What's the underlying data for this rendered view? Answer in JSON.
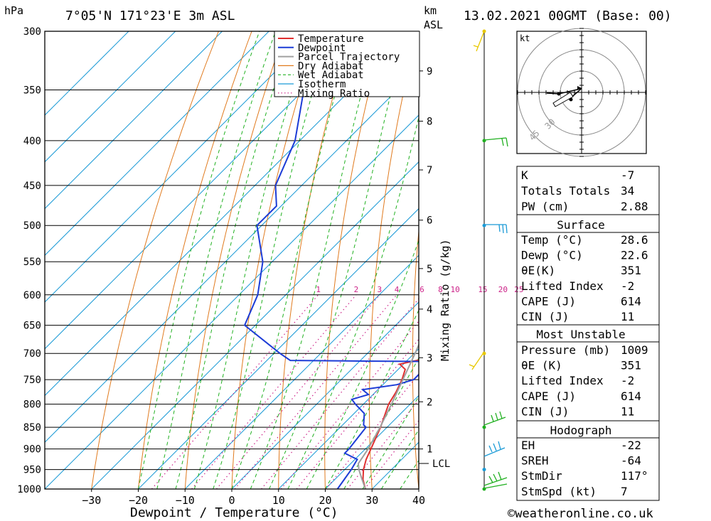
{
  "header": {
    "location": "7°05'N  171°23'E  3m  ASL",
    "datetime": "13.02.2021  00GMT  (Base: 00)",
    "hpa_label": "hPa",
    "km_label": "km",
    "asl_label": "ASL"
  },
  "chart_data": {
    "type": "line",
    "title": "7°05'N  171°23'E  3m  ASL",
    "xlabel": "Dewpoint / Temperature (°C)",
    "ylabel": "hPa",
    "right_axis_label": "km ASL",
    "mixing_ratio_axis_label": "Mixing Ratio (g/kg)",
    "x_ticks": [
      -30,
      -20,
      -10,
      0,
      10,
      20,
      30,
      40
    ],
    "x_tick_labels": [
      "−30",
      "−20",
      "−10",
      "0",
      "10",
      "20",
      "30",
      "40"
    ],
    "y_ticks": [
      300,
      350,
      400,
      450,
      500,
      550,
      600,
      650,
      700,
      750,
      800,
      850,
      900,
      950,
      1000
    ],
    "y_tick_labels": [
      "300",
      "350",
      "400",
      "450",
      "500",
      "550",
      "600",
      "650",
      "700",
      "750",
      "800",
      "850",
      "900",
      "950",
      "1000"
    ],
    "ylim": [
      300,
      1000
    ],
    "xlim_at_1000hPa": [
      -40,
      40
    ],
    "skew_degC_per_unit": 45,
    "km_ticks": [
      1,
      2,
      3,
      4,
      5,
      6,
      7,
      8,
      9
    ],
    "km_tick_labels": [
      "1",
      "2",
      "3",
      "4",
      "5",
      "6",
      "7",
      "8",
      "9"
    ],
    "km_pressures": [
      900,
      795,
      708,
      623,
      560,
      493,
      432,
      380,
      333
    ],
    "lcl_label": "LCL",
    "lcl_pressure": 935,
    "mixing_ratio_labels": [
      "1",
      "2",
      "3",
      "4",
      "6",
      "8",
      "10",
      "15",
      "20",
      "25"
    ],
    "mixing_ratio_values": [
      1,
      2,
      3,
      4,
      6,
      8,
      10,
      15,
      20,
      25
    ],
    "legend": [
      {
        "name": "Temperature",
        "color": "#e03030",
        "style": "solid"
      },
      {
        "name": "Dewpoint",
        "color": "#1c3cd6",
        "style": "solid"
      },
      {
        "name": "Parcel Trajectory",
        "color": "#a0a0a0",
        "style": "solid"
      },
      {
        "name": "Dry Adiabat",
        "color": "#e07a1e",
        "style": "solid"
      },
      {
        "name": "Wet Adiabat",
        "color": "#20b020",
        "style": "dashed"
      },
      {
        "name": "Isotherm",
        "color": "#1a9ad6",
        "style": "solid"
      },
      {
        "name": "Mixing Ratio",
        "color": "#cc2288",
        "style": "dotted"
      }
    ],
    "series": [
      {
        "name": "Temperature",
        "color": "#e03030",
        "points": [
          [
            1000,
            28.6
          ],
          [
            975,
            26
          ],
          [
            950,
            24
          ],
          [
            925,
            22.4
          ],
          [
            900,
            21.2
          ],
          [
            850,
            18.6
          ],
          [
            800,
            15.4
          ],
          [
            775,
            14.4
          ],
          [
            750,
            13
          ],
          [
            730,
            11.5
          ],
          [
            720,
            9.2
          ],
          [
            712,
            12.5
          ],
          [
            700,
            11.2
          ],
          [
            650,
            5
          ],
          [
            600,
            -1.5
          ],
          [
            550,
            -4.5
          ],
          [
            500,
            -11
          ],
          [
            475,
            -14.5
          ],
          [
            450,
            -18
          ],
          [
            400,
            -25
          ],
          [
            370,
            -30
          ]
        ]
      },
      {
        "name": "Dewpoint",
        "color": "#1c3cd6",
        "points": [
          [
            1000,
            22.6
          ],
          [
            975,
            22
          ],
          [
            950,
            21.4
          ],
          [
            925,
            20.5
          ],
          [
            910,
            16.5
          ],
          [
            900,
            16.5
          ],
          [
            850,
            15.5
          ],
          [
            845,
            14.5
          ],
          [
            820,
            12.2
          ],
          [
            800,
            8.3
          ],
          [
            790,
            6.5
          ],
          [
            780,
            9
          ],
          [
            770,
            6.7
          ],
          [
            760,
            13
          ],
          [
            750,
            15.5
          ],
          [
            715,
            15.5
          ],
          [
            714,
            -3
          ],
          [
            713,
            -15
          ],
          [
            700,
            -18.7
          ],
          [
            650,
            -32.3
          ],
          [
            600,
            -36
          ],
          [
            550,
            -42
          ],
          [
            500,
            -51
          ],
          [
            475,
            -51
          ],
          [
            450,
            -55.6
          ],
          [
            400,
            -61
          ],
          [
            350,
            -70
          ],
          [
            330,
            -72
          ],
          [
            320,
            -53
          ],
          [
            310,
            -52
          ],
          [
            300,
            -51
          ]
        ]
      },
      {
        "name": "Parcel Trajectory",
        "color": "#a0a0a0",
        "points": [
          [
            1000,
            28.6
          ],
          [
            975,
            25.8
          ],
          [
            950,
            23
          ],
          [
            935,
            21.6
          ],
          [
            900,
            20.6
          ],
          [
            850,
            18.5
          ],
          [
            800,
            16
          ],
          [
            750,
            13.2
          ],
          [
            700,
            10.2
          ],
          [
            650,
            6.8
          ],
          [
            600,
            3
          ],
          [
            550,
            -1.5
          ],
          [
            500,
            -7
          ],
          [
            450,
            -13.7
          ],
          [
            400,
            -21.8
          ],
          [
            360,
            -29.5
          ]
        ]
      }
    ],
    "wind_barbs": [
      {
        "pressure": 1000,
        "note": "surface"
      },
      {
        "pressure": 950
      },
      {
        "pressure": 850
      },
      {
        "pressure": 700
      },
      {
        "pressure": 500
      },
      {
        "pressure": 400
      },
      {
        "pressure": 300
      }
    ],
    "hodograph": {
      "unit_label": "kt",
      "ring_labels": [
        "30",
        "45"
      ]
    }
  },
  "indices": {
    "k_label": "K",
    "k_value": "-7",
    "tt_label": "Totals Totals",
    "tt_value": "34",
    "pw_label": "PW (cm)",
    "pw_value": "2.88"
  },
  "surface": {
    "header": "Surface",
    "rows": [
      {
        "label": "Temp (°C)",
        "value": "28.6"
      },
      {
        "label": "Dewp (°C)",
        "value": "22.6"
      },
      {
        "label": "θE(K)",
        "value": "351"
      },
      {
        "label": "Lifted Index",
        "value": "-2"
      },
      {
        "label": "CAPE (J)",
        "value": "614"
      },
      {
        "label": "CIN (J)",
        "value": "11"
      }
    ]
  },
  "most_unstable": {
    "header": "Most Unstable",
    "rows": [
      {
        "label": "Pressure (mb)",
        "value": "1009"
      },
      {
        "label": "θE (K)",
        "value": "351"
      },
      {
        "label": "Lifted Index",
        "value": "-2"
      },
      {
        "label": "CAPE (J)",
        "value": "614"
      },
      {
        "label": "CIN (J)",
        "value": "11"
      }
    ]
  },
  "hodograph_table": {
    "header": "Hodograph",
    "rows": [
      {
        "label": "EH",
        "value": "-22"
      },
      {
        "label": "SREH",
        "value": "-64"
      },
      {
        "label": "StmDir",
        "value": "117°"
      },
      {
        "label": "StmSpd (kt)",
        "value": "7"
      }
    ]
  },
  "footer": {
    "copyright": "©weatheronline.co.uk"
  }
}
